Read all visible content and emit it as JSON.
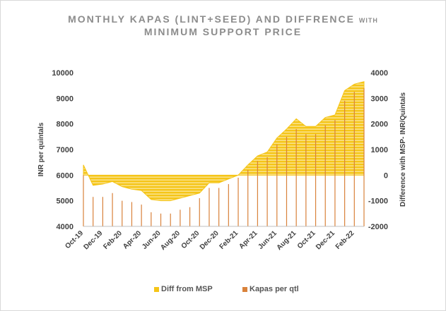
{
  "title_line1": "MONTHLY KAPAS (LINT+SEED) AND DIFFRENCE",
  "title_line1_small": "WITH",
  "title_line2": "MINIMUM SUPPORT PRICE",
  "colors": {
    "area": "#f5c518",
    "bar": "#d9823b",
    "stripe": "#ffffff"
  },
  "chart_data": {
    "type": "bar+area",
    "ylabel": "INR per quintals",
    "y2label": "Difference with MSP- INR/Quintals",
    "ylim": [
      4000,
      10000
    ],
    "y2lim": [
      -2000,
      4000
    ],
    "yticks": [
      4000,
      5000,
      6000,
      7000,
      8000,
      9000,
      10000
    ],
    "y2ticks": [
      -2000,
      -1000,
      0,
      1000,
      2000,
      3000,
      4000
    ],
    "x": [
      "Oct-19",
      "Nov-19",
      "Dec-19",
      "Jan-20",
      "Feb-20",
      "Mar-20",
      "Apr-20",
      "May-20",
      "Jun-20",
      "Jul-20",
      "Aug-20",
      "Sep-20",
      "Oct-20",
      "Nov-20",
      "Dec-20",
      "Jan-21",
      "Feb-21",
      "Mar-21",
      "Apr-21",
      "May-21",
      "Jun-21",
      "Jul-21",
      "Aug-21",
      "Sep-21",
      "Oct-21",
      "Nov-21",
      "Dec-21",
      "Jan-22",
      "Feb-22",
      "Mar-22"
    ],
    "xtick_labels": [
      "Oct-19",
      "Dec-19",
      "Feb-20",
      "Apr-20",
      "Jun-20",
      "Aug-20",
      "Oct-20",
      "Dec-20",
      "Feb-21",
      "Apr-21",
      "Jun-21",
      "Aug-21",
      "Oct-21",
      "Dec-21",
      "Feb-22"
    ],
    "series": [
      {
        "name": "Diff from MSP",
        "type": "area",
        "axis": "right",
        "values": [
          400,
          -400,
          -350,
          -250,
          -450,
          -550,
          -600,
          -950,
          -1000,
          -1000,
          -900,
          -800,
          -700,
          -300,
          -300,
          -150,
          0,
          400,
          750,
          900,
          1450,
          1800,
          2200,
          1900,
          1900,
          2250,
          2350,
          3300,
          3550,
          3650
        ]
      },
      {
        "name": "Kapas per qtl",
        "type": "bar",
        "axis": "left",
        "values": [
          6000,
          5150,
          5150,
          5300,
          5000,
          4950,
          4850,
          4550,
          4500,
          4500,
          4650,
          4750,
          5100,
          5500,
          5500,
          5650,
          5900,
          6200,
          6550,
          6700,
          7200,
          7500,
          7800,
          7600,
          7600,
          7950,
          8150,
          8900,
          9250,
          9400
        ]
      }
    ],
    "legend": "bottom"
  }
}
